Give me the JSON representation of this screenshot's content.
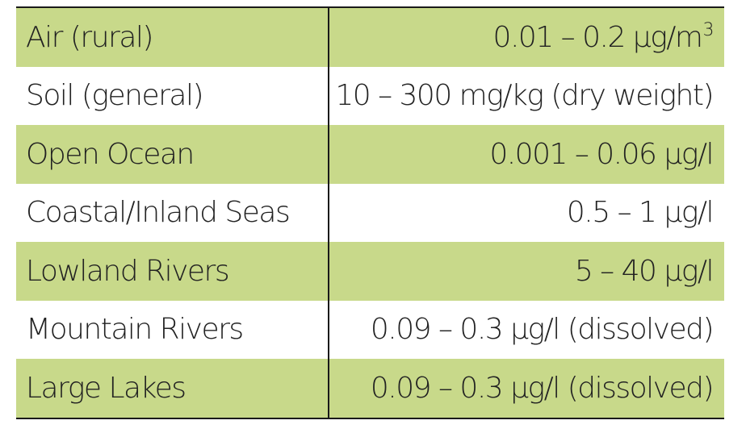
{
  "rows": [
    {
      "medium": "Air (rural)",
      "range": "0.01 – 0.2 µg/m",
      "sup": "3",
      "shaded": true
    },
    {
      "medium": "Soil (general)",
      "range": "10 – 300 mg/kg (dry weight)",
      "sup": "",
      "shaded": false
    },
    {
      "medium": "Open Ocean",
      "range": "0.001 – 0.06 µg/l",
      "sup": "",
      "shaded": true
    },
    {
      "medium": "Coastal/Inland Seas",
      "range": "0.5 – 1 µg/l",
      "sup": "",
      "shaded": false
    },
    {
      "medium": "Lowland Rivers",
      "range": "5 – 40 µg/l",
      "sup": "",
      "shaded": true
    },
    {
      "medium": "Mountain Rivers",
      "range": "0.09 – 0.3 µg/l (dissolved)",
      "sup": "",
      "shaded": false
    },
    {
      "medium": "Large Lakes",
      "range": "0.09 – 0.3 µg/l (dissolved)",
      "sup": "",
      "shaded": true
    }
  ],
  "colors": {
    "shaded_row": "#c8d98a",
    "rule": "#1a1a1a",
    "text": "#222222"
  }
}
